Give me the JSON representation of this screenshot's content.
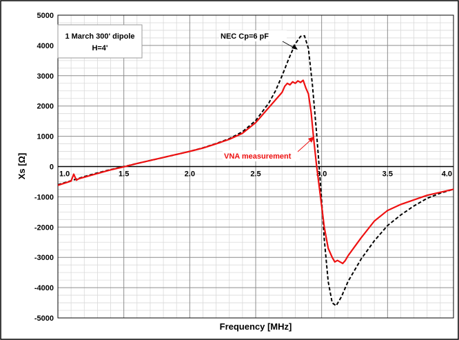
{
  "chart_data": {
    "type": "line",
    "title": "",
    "xlabel": "Frequency [MHz]",
    "ylabel": "Xs [Ω]",
    "xlim": [
      1.0,
      4.0
    ],
    "ylim": [
      -5000,
      5000
    ],
    "xticks": [
      "1.0",
      "1.5",
      "2.0",
      "2.5",
      "3.0",
      "3.5",
      "4.0"
    ],
    "yticks": [
      "5000",
      "4000",
      "3000",
      "2000",
      "1000",
      "0",
      "-1000",
      "-2000",
      "-3000",
      "-4000",
      "-5000"
    ],
    "grid": true,
    "infobox": [
      "1 March 300' dipole",
      "H=4'"
    ],
    "series": [
      {
        "name": "NEC Cp=6 pF",
        "color": "#000000",
        "style": "dashed",
        "x": [
          1.0,
          1.1,
          1.2,
          1.3,
          1.4,
          1.5,
          1.6,
          1.7,
          1.8,
          1.9,
          2.0,
          2.1,
          2.2,
          2.3,
          2.4,
          2.5,
          2.6,
          2.65,
          2.7,
          2.75,
          2.8,
          2.84,
          2.87,
          2.9,
          2.93,
          2.96,
          2.99,
          3.02,
          3.05,
          3.08,
          3.11,
          3.15,
          3.2,
          3.3,
          3.4,
          3.5,
          3.6,
          3.7,
          3.8,
          3.9,
          4.0
        ],
        "y": [
          -600,
          -470,
          -330,
          -210,
          -100,
          0,
          100,
          200,
          300,
          400,
          500,
          620,
          760,
          920,
          1150,
          1520,
          2100,
          2500,
          3000,
          3550,
          4050,
          4300,
          4320,
          3900,
          2700,
          1200,
          -500,
          -2400,
          -3800,
          -4500,
          -4600,
          -4300,
          -3800,
          -3050,
          -2450,
          -1950,
          -1600,
          -1300,
          -1050,
          -880,
          -750
        ]
      },
      {
        "name": "VNA measurement",
        "color": "#ee1111",
        "style": "solid",
        "x": [
          1.0,
          1.1,
          1.12,
          1.14,
          1.16,
          1.2,
          1.3,
          1.4,
          1.5,
          1.6,
          1.7,
          1.8,
          1.9,
          2.0,
          2.1,
          2.2,
          2.3,
          2.4,
          2.5,
          2.6,
          2.65,
          2.7,
          2.72,
          2.74,
          2.76,
          2.78,
          2.8,
          2.82,
          2.84,
          2.86,
          2.88,
          2.9,
          2.92,
          2.94,
          2.96,
          2.98,
          3.0,
          3.02,
          3.05,
          3.08,
          3.1,
          3.12,
          3.14,
          3.16,
          3.18,
          3.2,
          3.25,
          3.3,
          3.4,
          3.5,
          3.6,
          3.7,
          3.8,
          3.9,
          4.0
        ],
        "y": [
          -620,
          -480,
          -250,
          -450,
          -400,
          -350,
          -230,
          -110,
          -10,
          100,
          200,
          300,
          400,
          500,
          610,
          750,
          900,
          1100,
          1450,
          1950,
          2200,
          2450,
          2650,
          2750,
          2700,
          2800,
          2750,
          2830,
          2780,
          2850,
          2600,
          2400,
          1800,
          900,
          100,
          -600,
          -1300,
          -2000,
          -2700,
          -3000,
          -3150,
          -3100,
          -3150,
          -3200,
          -3100,
          -2950,
          -2650,
          -2350,
          -1800,
          -1450,
          -1250,
          -1100,
          -950,
          -850,
          -750
        ]
      }
    ],
    "annotations": [
      {
        "text": "NEC Cp=6 pF",
        "color": "#000000"
      },
      {
        "text": "VNA measurement",
        "color": "#ee1111"
      }
    ]
  }
}
